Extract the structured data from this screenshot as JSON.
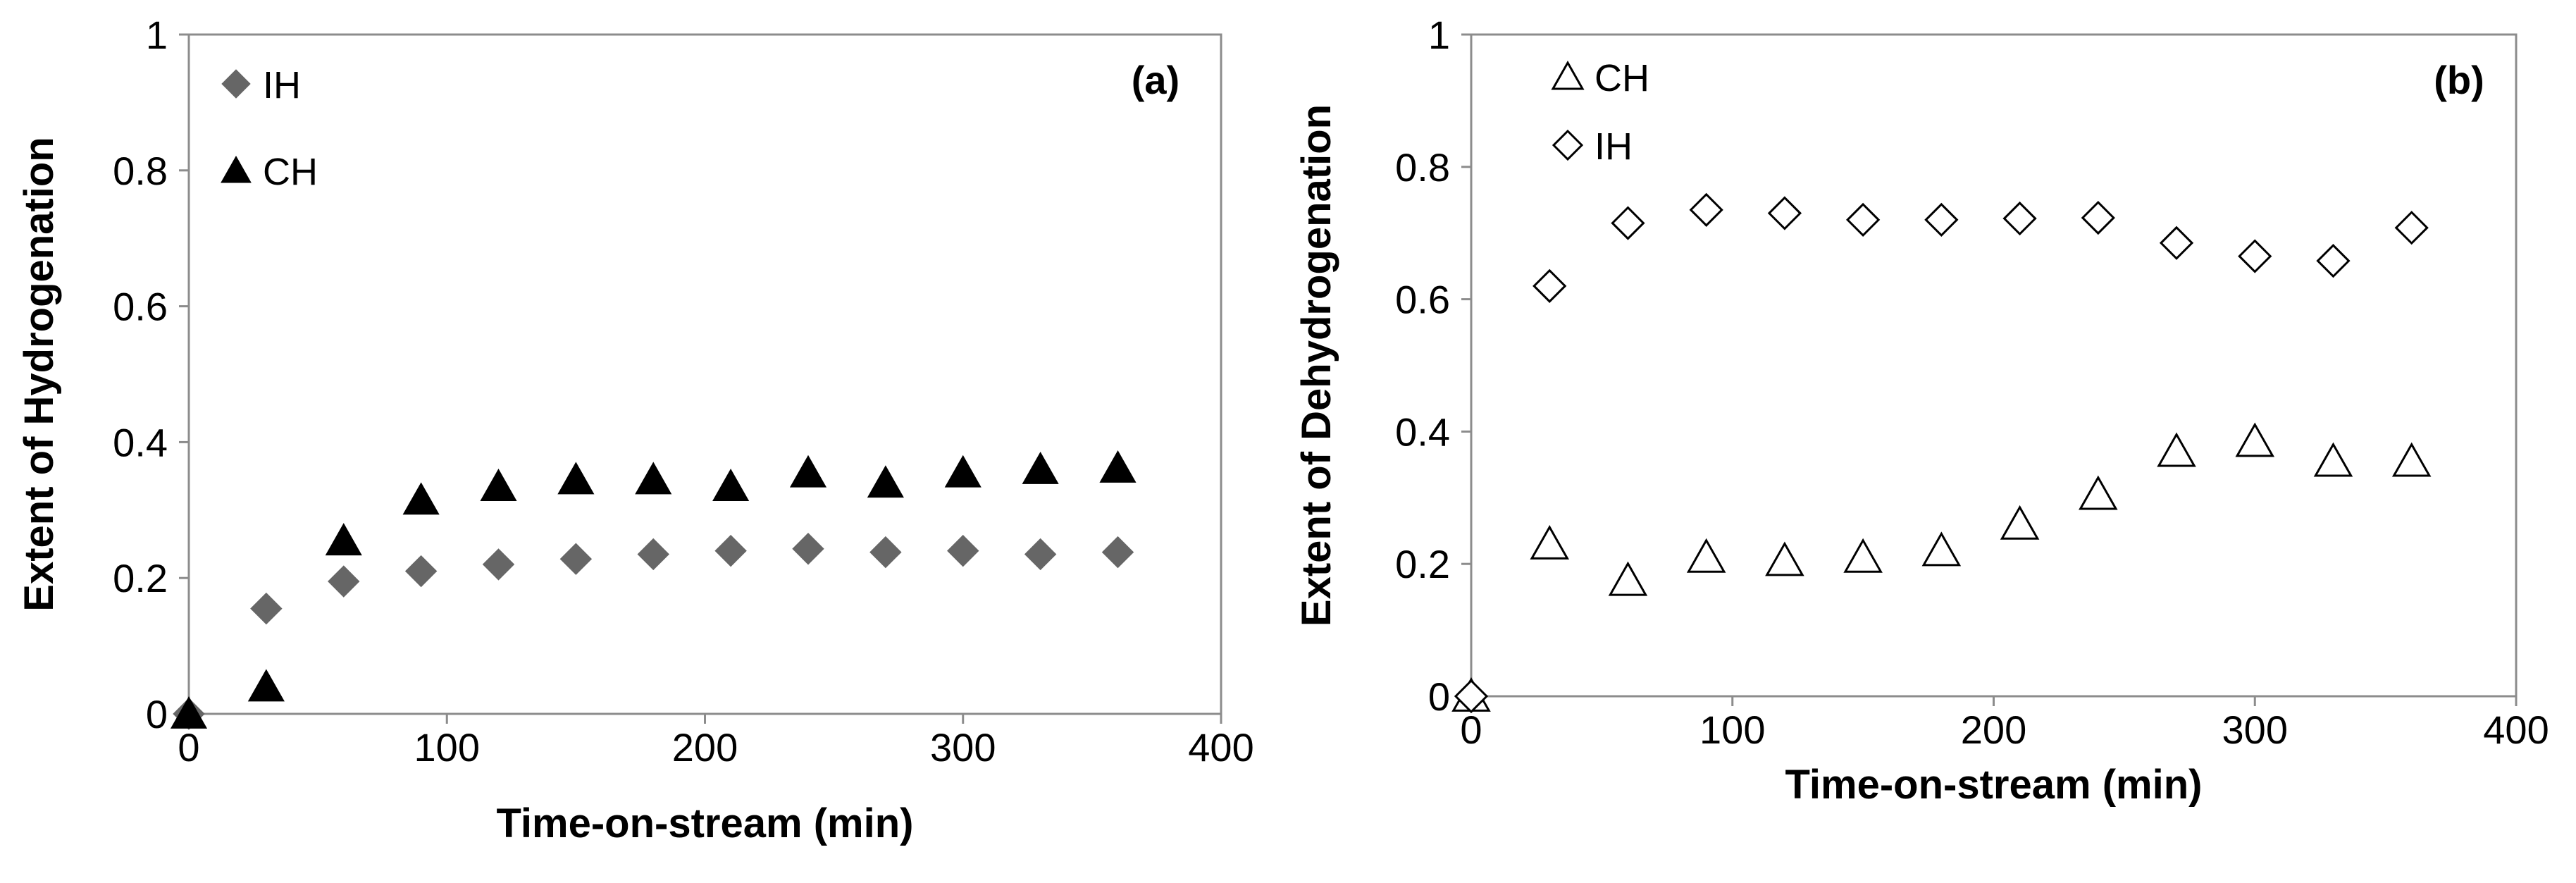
{
  "chart_data": [
    {
      "type": "scatter",
      "panel_label": "(a)",
      "xlabel": "Time-on-stream (min)",
      "ylabel": "Extent of Hydrogenation",
      "xlim": [
        0,
        400
      ],
      "ylim": [
        0,
        1
      ],
      "xticks": [
        0,
        100,
        200,
        300,
        400
      ],
      "yticks": [
        0,
        0.2,
        0.4,
        0.6,
        0.8,
        1
      ],
      "ytick_labels": [
        "0",
        "0.2",
        "0.4",
        "0.6",
        "0.8",
        "1"
      ],
      "grid": false,
      "legend_position": "top-left",
      "series": [
        {
          "name": "IH",
          "marker": "diamond",
          "filled": true,
          "color": "#666666",
          "x": [
            0,
            30,
            60,
            90,
            120,
            150,
            180,
            210,
            240,
            270,
            300,
            330,
            360
          ],
          "y": [
            0.0,
            0.155,
            0.195,
            0.21,
            0.22,
            0.228,
            0.235,
            0.24,
            0.243,
            0.238,
            0.24,
            0.235,
            0.238
          ]
        },
        {
          "name": "CH",
          "marker": "triangle",
          "filled": true,
          "color": "#000000",
          "x": [
            0,
            30,
            60,
            90,
            120,
            150,
            180,
            210,
            240,
            270,
            300,
            330,
            360
          ],
          "y": [
            0.0,
            0.04,
            0.255,
            0.315,
            0.335,
            0.345,
            0.345,
            0.335,
            0.355,
            0.34,
            0.355,
            0.36,
            0.362
          ]
        }
      ]
    },
    {
      "type": "scatter",
      "panel_label": "(b)",
      "xlabel": "Time-on-stream (min)",
      "ylabel": "Extent of Dehydrogenation",
      "xlim": [
        0,
        400
      ],
      "ylim": [
        0,
        1
      ],
      "xticks": [
        0,
        100,
        200,
        300,
        400
      ],
      "yticks": [
        0,
        0.2,
        0.4,
        0.6,
        0.8,
        1
      ],
      "ytick_labels": [
        "0",
        "0.2",
        "0.4",
        "0.6",
        "0.8",
        "1"
      ],
      "grid": false,
      "legend_position": "top-left",
      "series": [
        {
          "name": "CH",
          "marker": "triangle",
          "filled": false,
          "color": "#000000",
          "x": [
            0,
            30,
            60,
            90,
            120,
            150,
            180,
            210,
            240,
            270,
            300,
            330,
            360
          ],
          "y": [
            0.0,
            0.23,
            0.175,
            0.21,
            0.205,
            0.21,
            0.22,
            0.26,
            0.305,
            0.37,
            0.385,
            0.355,
            0.355
          ]
        },
        {
          "name": "IH",
          "marker": "diamond",
          "filled": false,
          "color": "#000000",
          "x": [
            0,
            30,
            60,
            90,
            120,
            150,
            180,
            210,
            240,
            270,
            300,
            330,
            360
          ],
          "y": [
            0.0,
            0.62,
            0.715,
            0.735,
            0.73,
            0.72,
            0.72,
            0.722,
            0.723,
            0.685,
            0.665,
            0.658,
            0.708
          ]
        }
      ]
    }
  ]
}
